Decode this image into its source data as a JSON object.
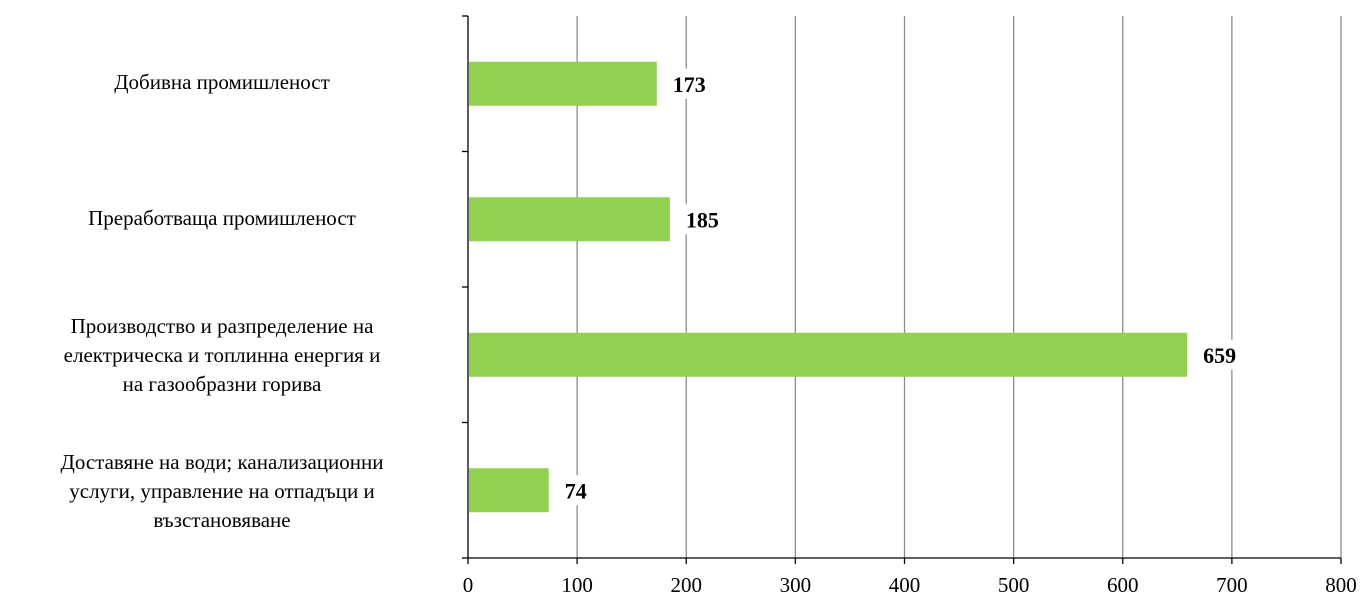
{
  "chart_data": {
    "type": "bar",
    "orientation": "horizontal",
    "categories": [
      "Добивна промишленост",
      "Преработваща промишленост",
      "Производство и разпределение на\nелектрическа и топлинна енергия и\nна газообразни горива",
      "Доставяне на води; канализационни\nуслуги, управление на отпадъци и\nвъзстановяване"
    ],
    "values": [
      173,
      185,
      659,
      74
    ],
    "data_labels": [
      "173",
      "185",
      "659",
      "74"
    ],
    "x_ticks": [
      "0",
      "100",
      "200",
      "300",
      "400",
      "500",
      "600",
      "700",
      "800"
    ],
    "xlim": [
      0,
      800
    ],
    "grid": "vertical",
    "legend": "none",
    "bar_color": "#92d050",
    "title": "",
    "xlabel": "",
    "ylabel": ""
  }
}
